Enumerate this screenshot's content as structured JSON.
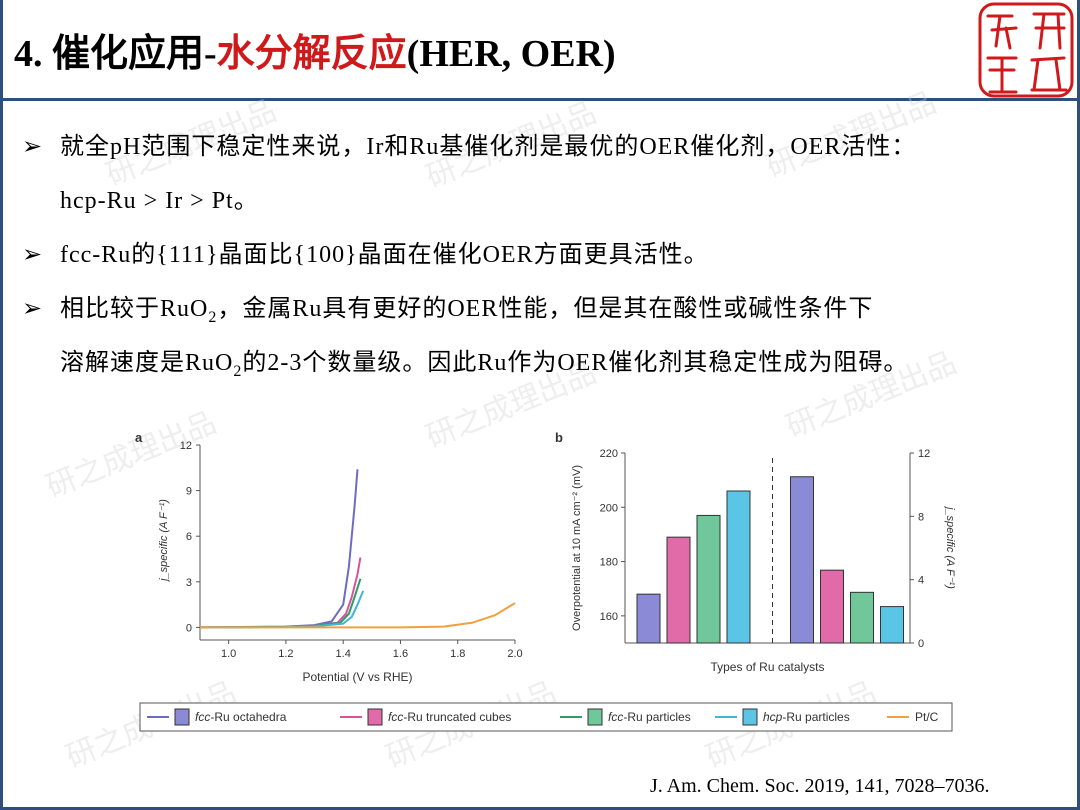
{
  "header": {
    "title_num": "4.",
    "title_cn_black": "催化应用-",
    "title_cn_red": "水分解反应",
    "title_tail": "(HER, OER)",
    "logo_text": [
      "研",
      "成",
      "理",
      "出"
    ]
  },
  "bullets": [
    {
      "lines": [
        "就全pH范围下稳定性来说，Ir和Ru基催化剂是最优的OER催化剂，OER活性：",
        "hcp-Ru > Ir > Pt。"
      ]
    },
    {
      "lines": [
        "fcc-Ru的{111}晶面比{100}晶面在催化OER方面更具活性。"
      ]
    },
    {
      "lines_a": {
        "pre": "相比较于RuO",
        "sub": "2",
        "post": "，金属Ru具有更好的OER性能，但是其在酸性或碱性条件下"
      },
      "lines_b": {
        "pre": "溶解速度是RuO",
        "sub": "2",
        "post": "的2-3个数量级。因此Ru作为OER催化剂其稳定性成为阻碍。"
      }
    }
  ],
  "watermark": "研之成理出品",
  "citation": "J. Am. Chem. Soc. 2019, 141, 7028–7036.",
  "chart_data": [
    {
      "type": "line",
      "panel": "a",
      "xlabel": "Potential (V vs RHE)",
      "ylabel": "j_specific (A F⁻¹)",
      "xlim": [
        0.9,
        2.0
      ],
      "ylim": [
        -0.5,
        12
      ],
      "xticks": [
        "1.0",
        "1.2",
        "1.4",
        "1.6",
        "1.8",
        "2.0"
      ],
      "yticks": [
        "0",
        "3",
        "6",
        "9",
        "12"
      ],
      "series": [
        {
          "name": "fcc-Ru octahedra",
          "color": "#6c6cc4",
          "x": [
            0.9,
            1.2,
            1.3,
            1.36,
            1.4,
            1.42,
            1.44,
            1.45
          ],
          "y": [
            0,
            0.05,
            0.15,
            0.4,
            1.5,
            4.0,
            8.0,
            10.4
          ]
        },
        {
          "name": "fcc-Ru truncated cubes",
          "color": "#d9529c",
          "x": [
            0.9,
            1.2,
            1.3,
            1.38,
            1.41,
            1.43,
            1.45,
            1.46
          ],
          "y": [
            0,
            0.04,
            0.12,
            0.3,
            0.9,
            2.0,
            3.5,
            4.6
          ]
        },
        {
          "name": "fcc-Ru particles",
          "color": "#2b9d66",
          "x": [
            0.9,
            1.2,
            1.3,
            1.39,
            1.42,
            1.44,
            1.46
          ],
          "y": [
            0,
            0.03,
            0.1,
            0.3,
            0.9,
            2.0,
            3.2
          ]
        },
        {
          "name": "hcp-Ru particles",
          "color": "#3fb6d8",
          "x": [
            0.9,
            1.2,
            1.3,
            1.4,
            1.43,
            1.45,
            1.47
          ],
          "y": [
            0,
            0.02,
            0.08,
            0.25,
            0.7,
            1.5,
            2.4
          ]
        },
        {
          "name": "Pt/C",
          "color": "#f0a040",
          "x": [
            0.9,
            1.2,
            1.4,
            1.6,
            1.75,
            1.85,
            1.93,
            2.0
          ],
          "y": [
            0,
            0,
            0,
            0,
            0.05,
            0.3,
            0.8,
            1.6
          ]
        }
      ]
    },
    {
      "type": "bar",
      "panel": "b",
      "xlabel": "Types of Ru catalysts",
      "ylabel_left": "Overpotential at 10 mA cm⁻² (mV)",
      "ylabel_right": "j_specific (A F⁻¹)",
      "ylim_left": [
        150,
        220
      ],
      "ylim_right": [
        0,
        12
      ],
      "yticks_left": [
        "160",
        "180",
        "200",
        "220"
      ],
      "yticks_right": [
        "0",
        "4",
        "8",
        "12"
      ],
      "series": [
        {
          "name": "fcc-Ru octahedra",
          "color": "#8a8ad6",
          "overpotential": 168,
          "j_specific": 10.5
        },
        {
          "name": "fcc-Ru truncated cubes",
          "color": "#e16aa8",
          "overpotential": 189,
          "j_specific": 4.6
        },
        {
          "name": "fcc-Ru particles",
          "color": "#6fc79a",
          "overpotential": 197,
          "j_specific": 3.2
        },
        {
          "name": "hcp-Ru particles",
          "color": "#5bc5e6",
          "overpotential": 206,
          "j_specific": 2.3
        }
      ]
    }
  ],
  "legend": [
    {
      "label_italic": "fcc",
      "label_rest": "-Ru octahedra"
    },
    {
      "label_italic": "fcc",
      "label_rest": "-Ru truncated cubes"
    },
    {
      "label_italic": "fcc",
      "label_rest": "-Ru particles"
    },
    {
      "label_italic": "hcp",
      "label_rest": "-Ru particles"
    },
    {
      "label_italic": "",
      "label_rest": "Pt/C"
    }
  ]
}
